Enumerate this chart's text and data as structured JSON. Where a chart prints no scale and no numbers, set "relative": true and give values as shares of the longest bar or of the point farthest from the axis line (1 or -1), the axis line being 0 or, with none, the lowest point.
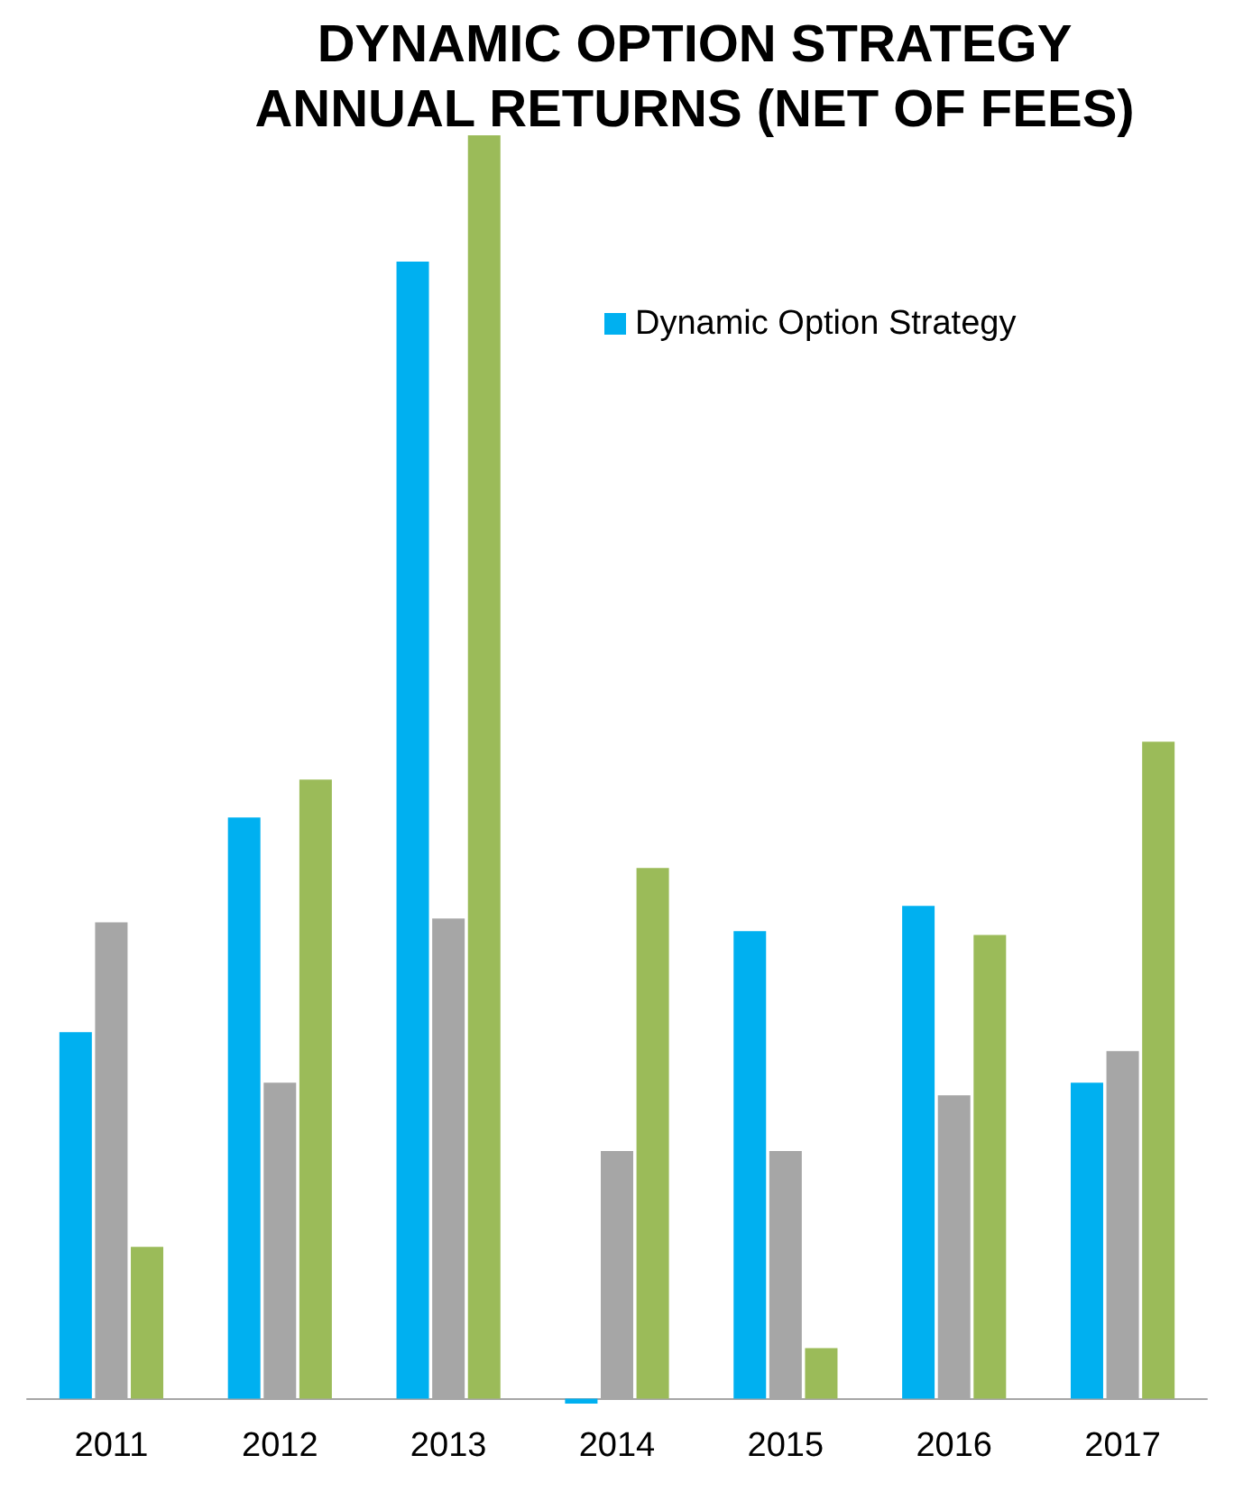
{
  "chart_data": {
    "type": "bar",
    "title": "DYNAMIC OPTION STRATEGY\nANNUAL RETURNS (NET OF FEES)",
    "relative": true,
    "legend": "top right",
    "categories": [
      "2011",
      "2012",
      "2013",
      "2014",
      "2015",
      "2016",
      "2017"
    ],
    "series": [
      {
        "name": "Dynamic Option Strategy",
        "color": "#00b0f0",
        "values": [
          0.29,
          0.46,
          0.9,
          -0.004,
          0.37,
          0.39,
          0.25
        ]
      },
      {
        "color": "#a6a6a6",
        "values": [
          0.377,
          0.25,
          0.38,
          0.196,
          0.196,
          0.24,
          0.275
        ]
      },
      {
        "color": "#9bbb59",
        "values": [
          0.12,
          0.49,
          1,
          0.42,
          0.04,
          0.367,
          0.52
        ]
      }
    ]
  }
}
